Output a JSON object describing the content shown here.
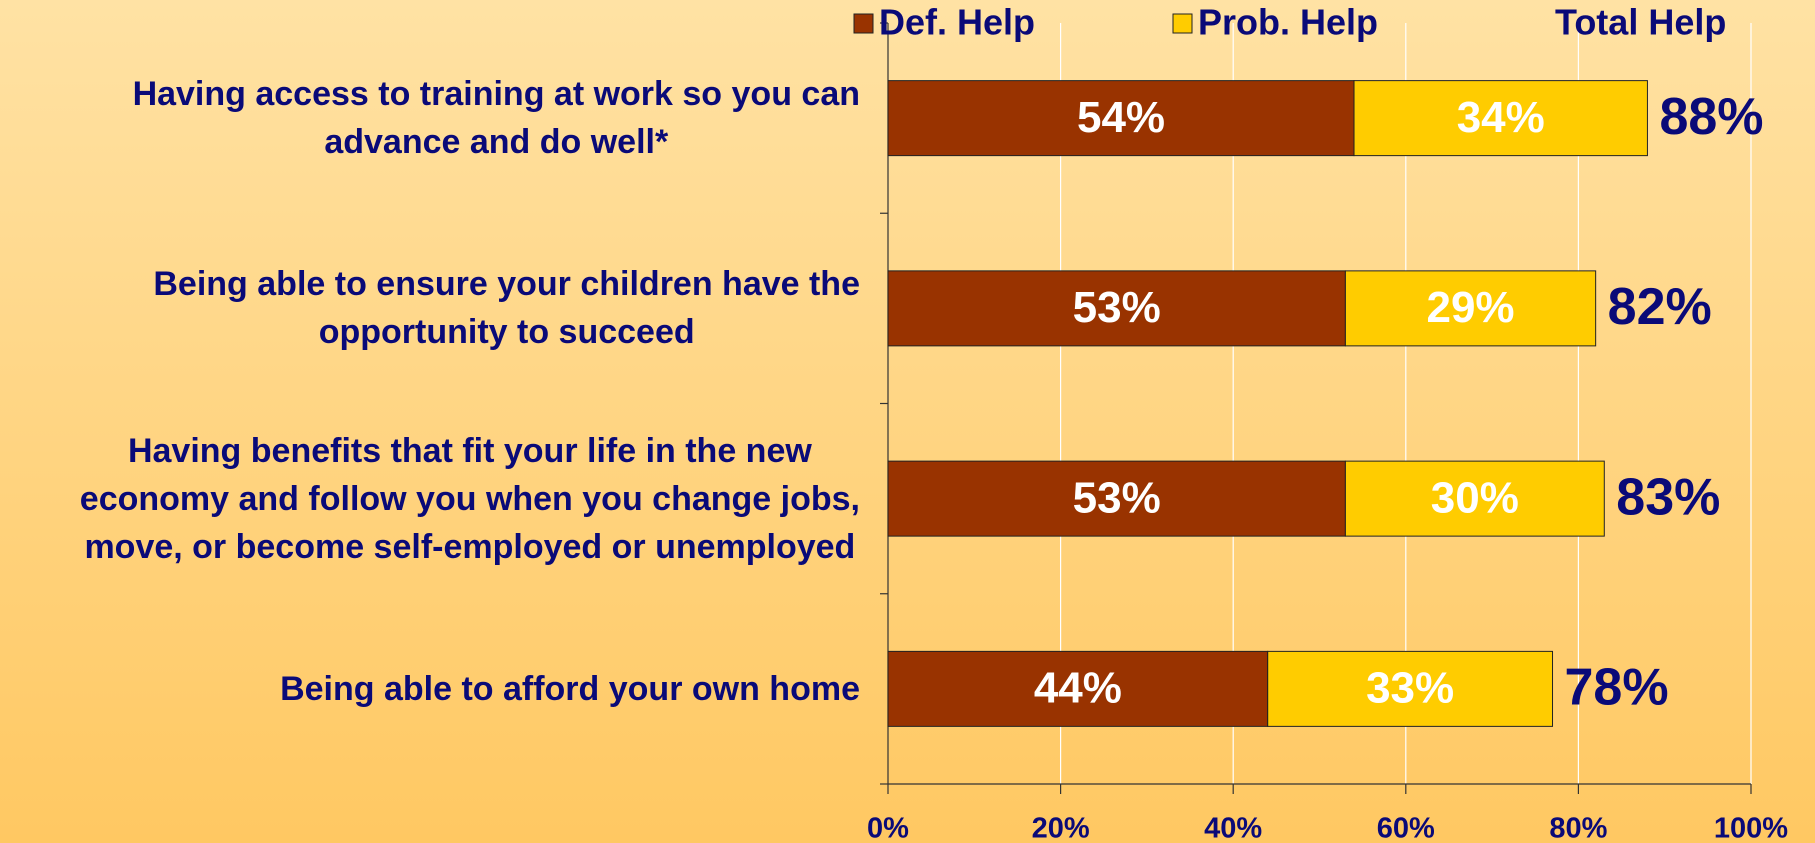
{
  "chart_data": {
    "type": "stacked_barh",
    "categories": [
      "Having access to training at work so you can\nadvance and do well*",
      "Being able to ensure your children have the\nopportunity to succeed",
      "Having benefits that fit your life in the new\neconomy and follow you when you change jobs,\nmove, or become self-employed or unemployed",
      "Being able to afford your own home"
    ],
    "series": [
      {
        "name": "Def. Help",
        "color": "#993300",
        "values": [
          54,
          53,
          53,
          44
        ],
        "value_labels": [
          "54%",
          "53%",
          "53%",
          "44%"
        ]
      },
      {
        "name": "Prob. Help",
        "color": "#ffcc00",
        "values": [
          34,
          29,
          30,
          33
        ],
        "value_labels": [
          "34%",
          "29%",
          "30%",
          "33%"
        ]
      }
    ],
    "totals": {
      "name": "Total Help",
      "values": [
        88,
        82,
        83,
        78
      ],
      "value_labels": [
        "88%",
        "82%",
        "83%",
        "78%"
      ]
    },
    "xlim": [
      0,
      100
    ],
    "xticks": [
      {
        "value": 0,
        "label": "0%"
      },
      {
        "value": 20,
        "label": "20%"
      },
      {
        "value": 40,
        "label": "40%"
      },
      {
        "value": 60,
        "label": "60%"
      },
      {
        "value": 80,
        "label": "80%"
      },
      {
        "value": 100,
        "label": "100%"
      }
    ],
    "grid": true
  }
}
